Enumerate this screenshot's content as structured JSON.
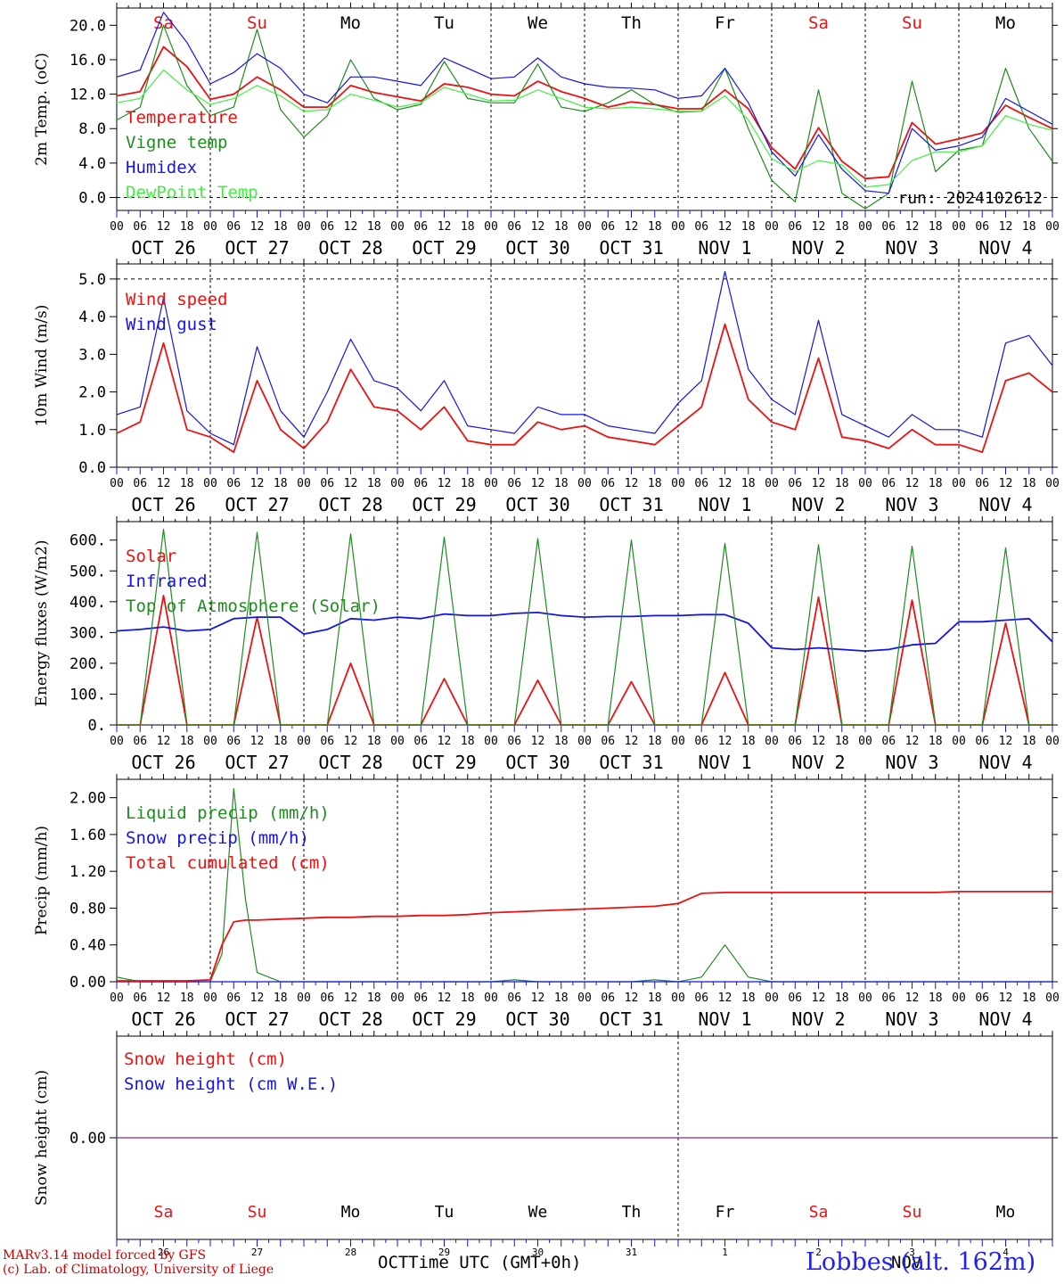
{
  "run_label": "run: 2024102612",
  "footer": {
    "model_line": "MARv3.14 model forced by GFS",
    "credit_line": "(c) Lab. of Climatology, University of Liege",
    "x_title": "Time UTC (GMT+0h)",
    "month_left": "OCT",
    "month_right": "NOV",
    "station": "Lobbes (alt. 162m)"
  },
  "colors": {
    "red": "#ee1111",
    "green": "#1e8c1e",
    "blue": "#1414e6",
    "lightgreen": "#44ee44",
    "purple": "#7a2a9a",
    "weekend": "#ee1111",
    "weekday": "#000000",
    "station": "#2222ee",
    "credit": "#cc0000"
  },
  "time_axis": {
    "day_labels": [
      "OCT 26",
      "OCT 27",
      "OCT 28",
      "OCT 29",
      "OCT 30",
      "OCT 31",
      "NOV  1",
      "NOV  2",
      "NOV  3",
      "NOV  4"
    ],
    "weekdays": [
      "Sa",
      "Su",
      "Mo",
      "Tu",
      "We",
      "Th",
      "Fr",
      "Sa",
      "Su",
      "Mo"
    ],
    "weekend_flags": [
      true,
      true,
      false,
      false,
      false,
      false,
      false,
      true,
      true,
      false
    ],
    "hour_ticks": [
      "00",
      "06",
      "12",
      "18"
    ],
    "final_tick": "00",
    "bottom_day_numbers": [
      "26",
      "27",
      "28",
      "29",
      "30",
      "31",
      "1",
      "2",
      "3",
      "4"
    ],
    "hours_total": 240
  },
  "chart_data": [
    {
      "type": "line",
      "ylabel": "2m Temp. (oC)",
      "ylim": [
        -1.5,
        22
      ],
      "yticks": [
        "20.0",
        "16.0",
        "12.0",
        "8.0",
        "4.0",
        "0.0"
      ],
      "ytick_values": [
        20,
        16,
        12,
        8,
        4,
        0
      ],
      "dashed_y": [
        0
      ],
      "show_weekdays_top": true,
      "x_hours": [
        0,
        6,
        12,
        18,
        24,
        30,
        36,
        42,
        48,
        54,
        60,
        66,
        72,
        78,
        84,
        90,
        96,
        102,
        108,
        114,
        120,
        126,
        132,
        138,
        144,
        150,
        156,
        162,
        168,
        174,
        180,
        186,
        192,
        198,
        204,
        210,
        216,
        222,
        228,
        234,
        240
      ],
      "series": [
        {
          "name": "Temperature",
          "color": "red",
          "values": [
            11.8,
            12.3,
            17.5,
            15.2,
            11.4,
            12.0,
            14.0,
            12.5,
            10.5,
            10.5,
            13.0,
            12.2,
            11.7,
            11.2,
            13.2,
            12.8,
            12.0,
            11.8,
            13.5,
            12.3,
            11.5,
            10.5,
            11.1,
            10.8,
            10.3,
            10.3,
            12.5,
            10.3,
            5.8,
            3.3,
            8.1,
            4.2,
            2.2,
            2.4,
            8.7,
            6.2,
            6.8,
            7.5,
            10.7,
            9.3,
            8.0
          ]
        },
        {
          "name": "Vigne temp",
          "color": "green",
          "values": [
            9.0,
            10.5,
            20.0,
            13.0,
            9.5,
            10.5,
            19.5,
            10.2,
            7.0,
            9.5,
            16.0,
            11.5,
            10.2,
            10.8,
            15.8,
            11.5,
            11.0,
            11.0,
            15.5,
            10.5,
            10.0,
            11.0,
            12.5,
            10.8,
            9.9,
            10.0,
            15.0,
            8.0,
            2.0,
            -0.5,
            12.5,
            0.5,
            -1.3,
            0.5,
            13.5,
            3.0,
            5.5,
            6.0,
            15.0,
            8.0,
            4.2
          ]
        },
        {
          "name": "Humidex",
          "color": "blue",
          "values": [
            14.0,
            14.8,
            21.5,
            18.0,
            13.2,
            14.5,
            16.7,
            15.0,
            12.0,
            11.0,
            14.0,
            14.0,
            13.5,
            13.0,
            16.2,
            15.0,
            13.8,
            14.0,
            16.2,
            14.0,
            13.2,
            12.8,
            12.7,
            12.5,
            11.5,
            11.8,
            15.0,
            11.0,
            5.3,
            2.5,
            7.3,
            3.3,
            0.8,
            0.5,
            8.0,
            5.5,
            6.0,
            7.0,
            11.5,
            10.0,
            8.5
          ]
        },
        {
          "name": "DewPoint Temp",
          "color": "lightgreen",
          "values": [
            11.0,
            11.5,
            14.8,
            12.5,
            10.8,
            11.5,
            13.0,
            11.8,
            10.0,
            10.2,
            12.0,
            11.3,
            10.5,
            11.0,
            12.8,
            12.0,
            11.2,
            11.3,
            12.5,
            11.5,
            10.5,
            10.3,
            10.5,
            10.3,
            10.0,
            10.0,
            11.8,
            9.0,
            4.5,
            3.0,
            4.3,
            3.8,
            1.2,
            1.5,
            4.3,
            5.3,
            5.3,
            6.0,
            9.5,
            8.5,
            7.8
          ]
        }
      ]
    },
    {
      "type": "line",
      "ylabel": "10m Wind (m/s)",
      "ylim": [
        0,
        5.4
      ],
      "yticks": [
        "5.0",
        "4.0",
        "3.0",
        "2.0",
        "1.0",
        "0.0"
      ],
      "ytick_values": [
        5,
        4,
        3,
        2,
        1,
        0
      ],
      "dashed_y": [
        5
      ],
      "show_weekdays_top": false,
      "x_hours": [
        0,
        6,
        12,
        18,
        24,
        30,
        36,
        42,
        48,
        54,
        60,
        66,
        72,
        78,
        84,
        90,
        96,
        102,
        108,
        114,
        120,
        126,
        132,
        138,
        144,
        150,
        156,
        162,
        168,
        174,
        180,
        186,
        192,
        198,
        204,
        210,
        216,
        222,
        228,
        234,
        240
      ],
      "series": [
        {
          "name": "Wind speed",
          "color": "red",
          "values": [
            0.9,
            1.2,
            3.3,
            1.0,
            0.8,
            0.4,
            2.3,
            1.0,
            0.5,
            1.2,
            2.6,
            1.6,
            1.5,
            1.0,
            1.6,
            0.7,
            0.6,
            0.6,
            1.2,
            1.0,
            1.1,
            0.8,
            0.7,
            0.6,
            1.1,
            1.6,
            3.8,
            1.8,
            1.2,
            1.0,
            2.9,
            0.8,
            0.7,
            0.5,
            1.0,
            0.6,
            0.6,
            0.4,
            2.3,
            2.5,
            2.0
          ]
        },
        {
          "name": "Wind gust",
          "color": "blue",
          "values": [
            1.4,
            1.6,
            4.5,
            1.5,
            0.9,
            0.6,
            3.2,
            1.5,
            0.8,
            2.0,
            3.4,
            2.3,
            2.1,
            1.5,
            2.3,
            1.1,
            1.0,
            0.9,
            1.6,
            1.4,
            1.4,
            1.1,
            1.0,
            0.9,
            1.7,
            2.3,
            5.2,
            2.6,
            1.8,
            1.4,
            3.9,
            1.4,
            1.1,
            0.8,
            1.4,
            1.0,
            1.0,
            0.8,
            3.3,
            3.5,
            2.7
          ]
        }
      ]
    },
    {
      "type": "line",
      "ylabel": "Energy fluxes (W/m2)",
      "ylim": [
        0,
        660
      ],
      "yticks": [
        "600.",
        "500.",
        "400.",
        "300.",
        "200.",
        "100.",
        "0."
      ],
      "ytick_values": [
        600,
        500,
        400,
        300,
        200,
        100,
        0
      ],
      "dashed_y": [],
      "show_weekdays_top": false,
      "x_hours": [
        0,
        6,
        12,
        18,
        24,
        30,
        36,
        42,
        48,
        54,
        60,
        66,
        72,
        78,
        84,
        90,
        96,
        102,
        108,
        114,
        120,
        126,
        132,
        138,
        144,
        150,
        156,
        162,
        168,
        174,
        180,
        186,
        192,
        198,
        204,
        210,
        216,
        222,
        228,
        234,
        240
      ],
      "series": [
        {
          "name": "Solar",
          "color": "red",
          "values": [
            0,
            0,
            420,
            0,
            0,
            0,
            350,
            0,
            0,
            0,
            200,
            0,
            0,
            0,
            150,
            0,
            0,
            0,
            145,
            0,
            0,
            0,
            140,
            0,
            0,
            0,
            170,
            0,
            0,
            0,
            415,
            0,
            0,
            0,
            405,
            0,
            0,
            0,
            330,
            0,
            0
          ]
        },
        {
          "name": "Infrared",
          "color": "blue",
          "values": [
            305,
            310,
            318,
            305,
            310,
            345,
            350,
            350,
            295,
            310,
            345,
            340,
            350,
            345,
            360,
            355,
            355,
            362,
            365,
            355,
            350,
            352,
            352,
            355,
            355,
            358,
            358,
            330,
            250,
            245,
            250,
            245,
            240,
            245,
            260,
            265,
            335,
            335,
            340,
            345,
            270
          ]
        },
        {
          "name": "Top of Atmosphere (Solar)",
          "color": "green",
          "values": [
            0,
            0,
            635,
            0,
            0,
            0,
            625,
            0,
            0,
            0,
            620,
            0,
            0,
            0,
            610,
            0,
            0,
            0,
            605,
            0,
            0,
            0,
            600,
            0,
            0,
            0,
            590,
            0,
            0,
            0,
            585,
            0,
            0,
            0,
            580,
            0,
            0,
            0,
            575,
            0,
            0
          ]
        }
      ]
    },
    {
      "type": "line",
      "ylabel": "Precip (mm/h)",
      "ylim": [
        0,
        2.2
      ],
      "yticks": [
        "2.00",
        "1.60",
        "1.20",
        "0.80",
        "0.40",
        "0.00"
      ],
      "ytick_values": [
        2.0,
        1.6,
        1.2,
        0.8,
        0.4,
        0.0
      ],
      "dashed_y": [],
      "show_weekdays_top": false,
      "x_hours": [
        0,
        6,
        12,
        18,
        24,
        27,
        30,
        33,
        36,
        42,
        48,
        54,
        60,
        66,
        72,
        78,
        84,
        90,
        96,
        102,
        108,
        114,
        120,
        126,
        132,
        138,
        144,
        150,
        156,
        162,
        168,
        174,
        180,
        186,
        192,
        198,
        204,
        210,
        216,
        222,
        228,
        234,
        240
      ],
      "series": [
        {
          "name": "Liquid precip (mm/h)",
          "color": "green",
          "values": [
            0.05,
            0.0,
            0.0,
            0.0,
            0.0,
            0.3,
            2.1,
            0.9,
            0.1,
            0.0,
            0.0,
            0.0,
            0.0,
            0.0,
            0.0,
            0.0,
            0.0,
            0.0,
            0.0,
            0.02,
            0.0,
            0.0,
            0.0,
            0.0,
            0.0,
            0.02,
            0.0,
            0.05,
            0.4,
            0.05,
            0.0,
            0.0,
            0.0,
            0.0,
            0.0,
            0.0,
            0.0,
            0.0,
            0.0,
            0.0,
            0.0,
            0.0,
            0.0
          ]
        },
        {
          "name": "Snow precip (mm/h)",
          "color": "blue",
          "values": [
            0,
            0,
            0,
            0,
            0,
            0,
            0,
            0,
            0,
            0,
            0,
            0,
            0,
            0,
            0,
            0,
            0,
            0,
            0,
            0,
            0,
            0,
            0,
            0,
            0,
            0,
            0,
            0,
            0,
            0,
            0,
            0,
            0,
            0,
            0,
            0,
            0,
            0,
            0,
            0,
            0,
            0,
            0
          ]
        },
        {
          "name": "Total cumulated (cm)",
          "color": "red",
          "values": [
            0.01,
            0.01,
            0.01,
            0.01,
            0.02,
            0.4,
            0.65,
            0.67,
            0.67,
            0.68,
            0.69,
            0.7,
            0.7,
            0.71,
            0.71,
            0.72,
            0.72,
            0.73,
            0.75,
            0.76,
            0.77,
            0.78,
            0.79,
            0.8,
            0.81,
            0.82,
            0.85,
            0.96,
            0.97,
            0.97,
            0.97,
            0.97,
            0.97,
            0.97,
            0.97,
            0.97,
            0.97,
            0.97,
            0.98,
            0.98,
            0.98,
            0.98,
            0.98
          ]
        }
      ]
    },
    {
      "type": "line",
      "ylabel": "Snow height (cm)",
      "ylim": [
        -1,
        1
      ],
      "yticks": [
        "0.00"
      ],
      "ytick_values": [
        0
      ],
      "dashed_y": [],
      "show_weekdays_top": false,
      "x_hours": [
        0,
        240
      ],
      "series": [
        {
          "name": "Snow height (cm)",
          "color": "red",
          "values": [
            0,
            0
          ],
          "hidden": true
        },
        {
          "name": "Snow height (cm W.E.)",
          "color": "blue",
          "values": [
            0,
            0
          ],
          "hidden": true
        },
        {
          "name": "",
          "color": "purple",
          "values": [
            0,
            0
          ]
        }
      ]
    }
  ]
}
